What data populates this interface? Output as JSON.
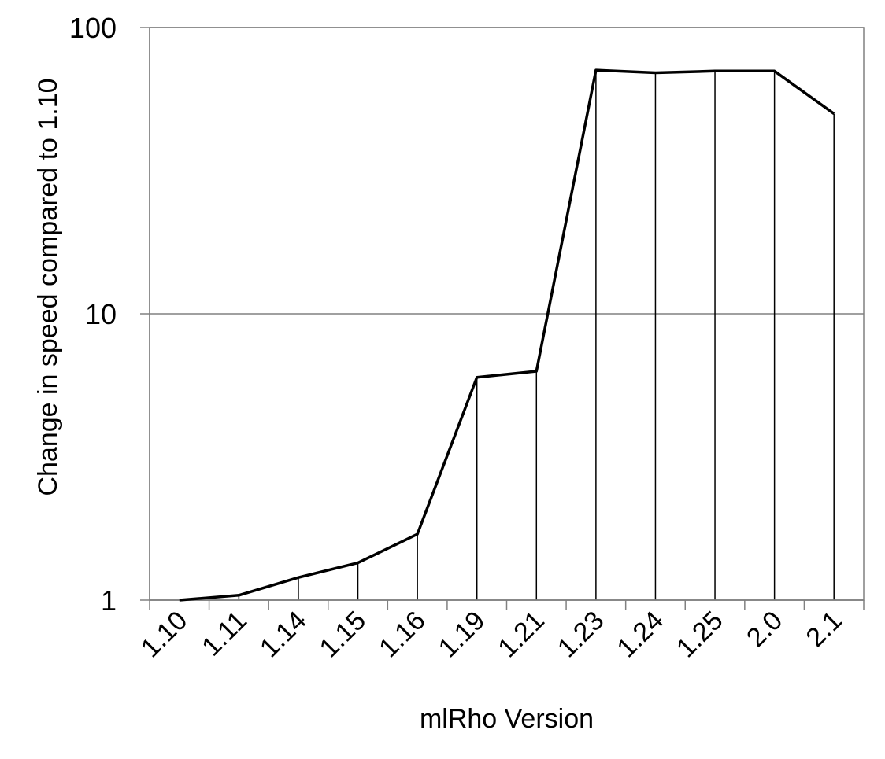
{
  "chart_data": {
    "type": "line",
    "title": "",
    "xlabel": "mlRho Version",
    "ylabel": "Change in speed compared to 1.10",
    "yscale": "log",
    "ylim": [
      1,
      100
    ],
    "yticks": [
      1,
      10,
      100
    ],
    "ytick_labels": [
      "1",
      "10",
      "100"
    ],
    "grid": "horizontal major gridlines",
    "drop_lines": true,
    "legend": "none",
    "categories": [
      "1.10",
      "1.11",
      "1.14",
      "1.15",
      "1.16",
      "1.19",
      "1.21",
      "1.23",
      "1.24",
      "1.25",
      "2.0",
      "2.1"
    ],
    "series": [
      {
        "values": [
          1.0,
          1.04,
          1.2,
          1.35,
          1.7,
          6.0,
          6.3,
          71,
          69.5,
          70.5,
          70.5,
          50
        ]
      }
    ],
    "line_color": "#000000",
    "grid_color": "#808080"
  }
}
